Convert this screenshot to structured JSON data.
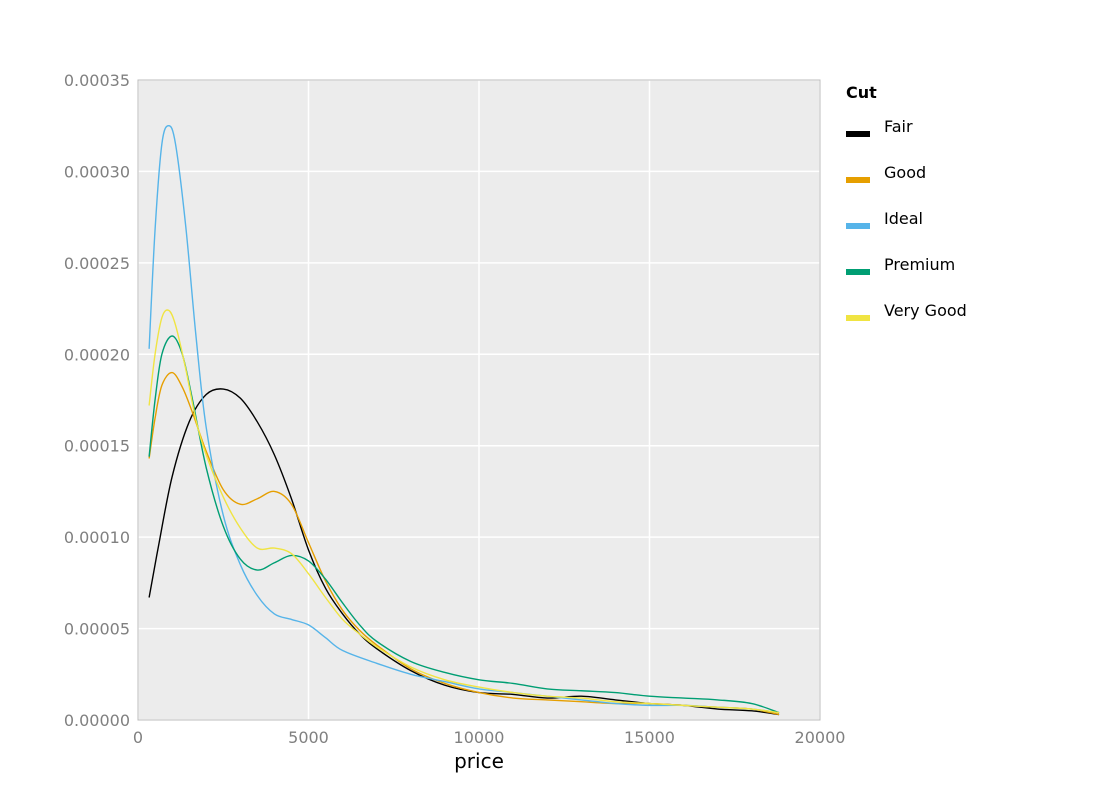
{
  "chart_data": {
    "type": "line",
    "xlabel": "price",
    "ylabel": "",
    "xlim": [
      0,
      20000
    ],
    "ylim": [
      0,
      0.00035
    ],
    "x_ticks": [
      "0",
      "5000",
      "10000",
      "15000",
      "20000"
    ],
    "y_ticks": [
      "0.00000",
      "0.00005",
      "0.00010",
      "0.00015",
      "0.00020",
      "0.00025",
      "0.00030",
      "0.00035"
    ],
    "x_tick_values": [
      0,
      5000,
      10000,
      15000,
      20000
    ],
    "y_tick_values": [
      0,
      5e-05,
      0.0001,
      0.00015,
      0.0002,
      0.00025,
      0.0003,
      0.00035
    ],
    "grid": true,
    "background": "#ececec",
    "legend": {
      "title": "Cut",
      "position": "right"
    },
    "series": [
      {
        "name": "Fair",
        "color": "#000000",
        "points": [
          [
            326,
            6.7e-05
          ],
          [
            600,
            9.5e-05
          ],
          [
            1000,
            0.000133
          ],
          [
            1500,
            0.000163
          ],
          [
            2000,
            0.000178
          ],
          [
            2500,
            0.000181
          ],
          [
            3000,
            0.000176
          ],
          [
            3500,
            0.000163
          ],
          [
            4000,
            0.000145
          ],
          [
            4500,
            0.000121
          ],
          [
            5000,
            9.3e-05
          ],
          [
            5500,
            7.2e-05
          ],
          [
            6000,
            5.8e-05
          ],
          [
            6500,
            4.7e-05
          ],
          [
            7000,
            3.9e-05
          ],
          [
            8000,
            2.7e-05
          ],
          [
            9000,
            1.9e-05
          ],
          [
            10000,
            1.5e-05
          ],
          [
            11000,
            1.4e-05
          ],
          [
            12000,
            1.2e-05
          ],
          [
            13000,
            1.3e-05
          ],
          [
            14000,
            1.1e-05
          ],
          [
            15000,
            9e-06
          ],
          [
            16000,
            8e-06
          ],
          [
            17000,
            6e-06
          ],
          [
            18000,
            5e-06
          ],
          [
            18800,
            3e-06
          ]
        ]
      },
      {
        "name": "Good",
        "color": "#e69f00",
        "points": [
          [
            326,
            0.000143
          ],
          [
            500,
            0.000165
          ],
          [
            700,
            0.000183
          ],
          [
            1000,
            0.00019
          ],
          [
            1300,
            0.000182
          ],
          [
            1600,
            0.000168
          ],
          [
            2000,
            0.000147
          ],
          [
            2500,
            0.000126
          ],
          [
            3000,
            0.000118
          ],
          [
            3500,
            0.000121
          ],
          [
            4000,
            0.000125
          ],
          [
            4500,
            0.000118
          ],
          [
            5000,
            9.7e-05
          ],
          [
            5500,
            7.6e-05
          ],
          [
            6000,
            6e-05
          ],
          [
            6500,
            4.9e-05
          ],
          [
            7000,
            4.1e-05
          ],
          [
            8000,
            2.8e-05
          ],
          [
            9000,
            2e-05
          ],
          [
            10000,
            1.5e-05
          ],
          [
            11000,
            1.2e-05
          ],
          [
            12000,
            1.1e-05
          ],
          [
            13000,
            1e-05
          ],
          [
            14000,
            9e-06
          ],
          [
            15000,
            9e-06
          ],
          [
            16000,
            8e-06
          ],
          [
            17000,
            7e-06
          ],
          [
            18000,
            6e-06
          ],
          [
            18800,
            3e-06
          ]
        ]
      },
      {
        "name": "Ideal",
        "color": "#56b4e9",
        "points": [
          [
            326,
            0.000203
          ],
          [
            500,
            0.000268
          ],
          [
            700,
            0.000315
          ],
          [
            900,
            0.000325
          ],
          [
            1100,
            0.000315
          ],
          [
            1400,
            0.00027
          ],
          [
            1700,
            0.00021
          ],
          [
            2000,
            0.00016
          ],
          [
            2500,
            0.000112
          ],
          [
            3000,
            8.5e-05
          ],
          [
            3500,
            6.8e-05
          ],
          [
            4000,
            5.8e-05
          ],
          [
            4500,
            5.5e-05
          ],
          [
            5000,
            5.2e-05
          ],
          [
            5500,
            4.5e-05
          ],
          [
            6000,
            3.8e-05
          ],
          [
            7000,
            3.1e-05
          ],
          [
            8000,
            2.5e-05
          ],
          [
            9000,
            2.1e-05
          ],
          [
            10000,
            1.7e-05
          ],
          [
            11000,
            1.5e-05
          ],
          [
            12000,
            1.3e-05
          ],
          [
            13000,
            1.1e-05
          ],
          [
            14000,
            9e-06
          ],
          [
            15000,
            8e-06
          ],
          [
            16000,
            8e-06
          ],
          [
            17000,
            7e-06
          ],
          [
            18000,
            6e-06
          ],
          [
            18800,
            4e-06
          ]
        ]
      },
      {
        "name": "Premium",
        "color": "#009e73",
        "points": [
          [
            326,
            0.000144
          ],
          [
            500,
            0.000175
          ],
          [
            700,
            0.0002
          ],
          [
            1000,
            0.00021
          ],
          [
            1300,
            0.0002
          ],
          [
            1600,
            0.000175
          ],
          [
            2000,
            0.000138
          ],
          [
            2500,
            0.000106
          ],
          [
            3000,
            8.8e-05
          ],
          [
            3500,
            8.2e-05
          ],
          [
            4000,
            8.6e-05
          ],
          [
            4500,
            9e-05
          ],
          [
            5000,
            8.7e-05
          ],
          [
            5500,
            7.7e-05
          ],
          [
            6000,
            6.4e-05
          ],
          [
            6500,
            5.2e-05
          ],
          [
            7000,
            4.3e-05
          ],
          [
            8000,
            3.2e-05
          ],
          [
            9000,
            2.6e-05
          ],
          [
            10000,
            2.2e-05
          ],
          [
            11000,
            2e-05
          ],
          [
            12000,
            1.7e-05
          ],
          [
            13000,
            1.6e-05
          ],
          [
            14000,
            1.5e-05
          ],
          [
            15000,
            1.3e-05
          ],
          [
            16000,
            1.2e-05
          ],
          [
            17000,
            1.1e-05
          ],
          [
            18000,
            9e-06
          ],
          [
            18800,
            4e-06
          ]
        ]
      },
      {
        "name": "Very Good",
        "color": "#f0e442",
        "points": [
          [
            326,
            0.000172
          ],
          [
            500,
            0.0002
          ],
          [
            700,
            0.00022
          ],
          [
            900,
            0.000224
          ],
          [
            1100,
            0.000216
          ],
          [
            1400,
            0.000192
          ],
          [
            1700,
            0.000164
          ],
          [
            2000,
            0.000145
          ],
          [
            2500,
            0.000122
          ],
          [
            3000,
            0.000105
          ],
          [
            3500,
            9.4e-05
          ],
          [
            4000,
            9.4e-05
          ],
          [
            4500,
            9.1e-05
          ],
          [
            5000,
            8e-05
          ],
          [
            5500,
            6.7e-05
          ],
          [
            6000,
            5.5e-05
          ],
          [
            6500,
            4.7e-05
          ],
          [
            7000,
            4e-05
          ],
          [
            8000,
            2.9e-05
          ],
          [
            9000,
            2.2e-05
          ],
          [
            10000,
            1.8e-05
          ],
          [
            11000,
            1.5e-05
          ],
          [
            12000,
            1.3e-05
          ],
          [
            13000,
            1.2e-05
          ],
          [
            14000,
            1e-05
          ],
          [
            15000,
            9e-06
          ],
          [
            16000,
            8e-06
          ],
          [
            17000,
            7e-06
          ],
          [
            18000,
            6e-06
          ],
          [
            18800,
            4e-06
          ]
        ]
      }
    ]
  }
}
